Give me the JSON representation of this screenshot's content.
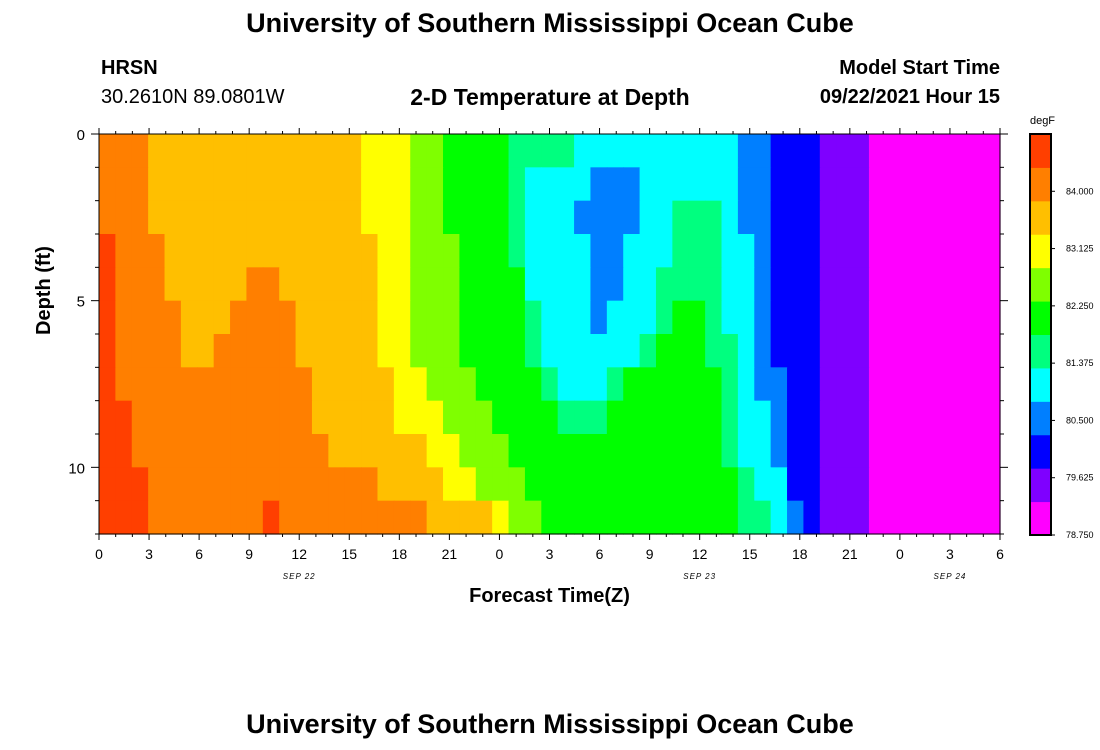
{
  "header": {
    "title_top": "University of Southern Mississippi Ocean Cube",
    "title_bottom": "University of Southern Mississippi Ocean Cube",
    "station": "HRSN",
    "coords": "30.2610N  89.0801W",
    "plot_title": "2-D Temperature at Depth",
    "model_label": "Model Start Time",
    "model_time": "09/22/2021 Hour 15"
  },
  "chart_data": {
    "type": "heatmap",
    "title": "2-D Temperature at Depth",
    "xlabel": "Forecast Time(Z)",
    "ylabel": "Depth (ft)",
    "x_hours": [
      0,
      1,
      2,
      3,
      4,
      5,
      6,
      7,
      8,
      9,
      10,
      11,
      12,
      13,
      14,
      15,
      16,
      17,
      18,
      19,
      20,
      21,
      22,
      23,
      24,
      25,
      26,
      27,
      28,
      29,
      30,
      31,
      32,
      33,
      34,
      35,
      36,
      37,
      38,
      39,
      40,
      41,
      42,
      43,
      44,
      45,
      46,
      47,
      48,
      49,
      50,
      51,
      52,
      53,
      54
    ],
    "x_tick_labels": [
      "0",
      "3",
      "6",
      "9",
      "12",
      "15",
      "18",
      "21",
      "0",
      "3",
      "6",
      "9",
      "12",
      "15",
      "18",
      "21",
      "0",
      "3",
      "6"
    ],
    "date_labels": [
      "SEP 22",
      "SEP 23",
      "SEP 24"
    ],
    "y_depth_ft": [
      0.5,
      1.5,
      2.5,
      3.5,
      4.5,
      5.5,
      6.5,
      7.5,
      8.5,
      9.5,
      10.5,
      11.5
    ],
    "ylim": [
      0,
      12
    ],
    "y_tick_labels": [
      "0",
      "5",
      "10"
    ],
    "colorbar": {
      "unit": "degF",
      "min": 78.75,
      "max": 84.875,
      "tick_labels": [
        "84.000",
        "83.125",
        "82.250",
        "81.375",
        "80.500",
        "79.625",
        "78.750"
      ],
      "colors": [
        "#ff00ff",
        "#7f00ff",
        "#0000ff",
        "#007fff",
        "#00ffff",
        "#00ff7f",
        "#00ff00",
        "#7fff00",
        "#ffff00",
        "#ffbf00",
        "#ff7f00",
        "#ff3f00"
      ]
    },
    "temperature_degF": [
      [
        84.2,
        84.0,
        83.9,
        83.8,
        83.75,
        83.7,
        83.72,
        83.75,
        83.77,
        83.78,
        83.78,
        83.76,
        83.72,
        83.65,
        83.55,
        83.45,
        83.3,
        83.1,
        82.9,
        82.7,
        82.5,
        82.3,
        82.2,
        82.1,
        82.0,
        81.8,
        81.6,
        81.45,
        81.35,
        81.25,
        81.2,
        81.15,
        81.1,
        81.05,
        81.0,
        81.0,
        81.0,
        81.0,
        80.9,
        80.7,
        80.4,
        80.2,
        80.0,
        79.8,
        79.6,
        79.5,
        79.35,
        79.2,
        79.1,
        79.0,
        78.92,
        78.86,
        78.8,
        78.78,
        78.76
      ],
      [
        84.25,
        84.05,
        83.95,
        83.82,
        83.77,
        83.72,
        83.73,
        83.76,
        83.78,
        83.8,
        83.8,
        83.78,
        83.74,
        83.67,
        83.58,
        83.48,
        83.32,
        83.12,
        82.92,
        82.7,
        82.5,
        82.3,
        82.2,
        82.1,
        82.0,
        81.7,
        81.3,
        81.05,
        80.95,
        80.85,
        80.75,
        80.7,
        80.75,
        80.85,
        81.0,
        81.1,
        81.2,
        81.2,
        81.0,
        80.7,
        80.4,
        80.2,
        80.0,
        79.8,
        79.6,
        79.5,
        79.35,
        79.2,
        79.1,
        79.0,
        78.92,
        78.86,
        78.8,
        78.78,
        78.76
      ],
      [
        84.3,
        84.1,
        84.0,
        83.85,
        83.8,
        83.75,
        83.75,
        83.78,
        83.8,
        83.82,
        83.82,
        83.8,
        83.76,
        83.7,
        83.6,
        83.5,
        83.34,
        83.14,
        82.94,
        82.72,
        82.52,
        82.32,
        82.22,
        82.12,
        82.02,
        81.6,
        81.05,
        80.95,
        80.85,
        80.75,
        80.65,
        80.65,
        80.75,
        80.95,
        81.15,
        81.35,
        81.5,
        81.4,
        81.1,
        80.75,
        80.42,
        80.2,
        80.0,
        79.8,
        79.6,
        79.5,
        79.35,
        79.2,
        79.1,
        79.0,
        78.92,
        78.86,
        78.8,
        78.78,
        78.76
      ],
      [
        84.4,
        84.15,
        84.05,
        83.9,
        83.82,
        83.78,
        83.77,
        83.8,
        83.82,
        83.84,
        83.84,
        83.82,
        83.78,
        83.72,
        83.62,
        83.52,
        83.36,
        83.16,
        82.96,
        82.74,
        82.54,
        82.34,
        82.24,
        82.14,
        82.04,
        81.8,
        81.1,
        81.0,
        80.9,
        80.8,
        80.7,
        80.7,
        80.8,
        81.0,
        81.25,
        81.45,
        81.6,
        81.5,
        81.2,
        80.8,
        80.45,
        80.22,
        80.0,
        79.8,
        79.6,
        79.5,
        79.35,
        79.2,
        79.1,
        79.0,
        78.92,
        78.86,
        78.8,
        78.78,
        78.76
      ],
      [
        84.45,
        84.2,
        84.1,
        83.95,
        83.85,
        83.8,
        83.8,
        83.82,
        83.84,
        83.86,
        83.86,
        83.84,
        83.8,
        83.74,
        83.64,
        83.54,
        83.38,
        83.18,
        82.98,
        82.76,
        82.56,
        82.36,
        82.26,
        82.16,
        82.06,
        81.9,
        81.2,
        81.05,
        80.92,
        80.82,
        80.72,
        80.72,
        80.85,
        81.1,
        81.4,
        81.7,
        81.8,
        81.6,
        81.25,
        80.85,
        80.48,
        80.24,
        80.0,
        79.8,
        79.6,
        79.5,
        79.35,
        79.2,
        79.1,
        79.0,
        78.92,
        78.86,
        78.8,
        78.78,
        78.76
      ],
      [
        84.5,
        84.25,
        84.15,
        84.0,
        83.88,
        83.82,
        83.82,
        83.84,
        83.86,
        83.88,
        83.88,
        83.86,
        83.82,
        83.76,
        83.66,
        83.56,
        83.4,
        83.2,
        83.0,
        82.78,
        82.58,
        82.38,
        82.28,
        82.18,
        82.08,
        82.0,
        81.5,
        81.1,
        80.95,
        80.85,
        80.75,
        80.8,
        80.95,
        81.3,
        81.8,
        82.0,
        82.0,
        81.7,
        81.3,
        80.9,
        80.5,
        80.26,
        80.0,
        79.8,
        79.6,
        79.5,
        79.35,
        79.2,
        79.1,
        79.0,
        78.92,
        78.86,
        78.8,
        78.78,
        78.76
      ],
      [
        84.55,
        84.3,
        84.2,
        84.05,
        83.92,
        83.85,
        83.85,
        83.86,
        83.88,
        83.9,
        83.9,
        83.88,
        83.84,
        83.78,
        83.68,
        83.58,
        83.45,
        83.25,
        83.05,
        82.82,
        82.62,
        82.42,
        82.3,
        82.2,
        82.1,
        82.05,
        81.8,
        81.2,
        81.0,
        80.9,
        80.8,
        80.9,
        81.2,
        81.8,
        82.1,
        82.2,
        82.2,
        81.8,
        81.35,
        80.95,
        80.55,
        80.28,
        80.0,
        79.8,
        79.6,
        79.5,
        79.35,
        79.2,
        79.1,
        79.0,
        78.92,
        78.86,
        78.8,
        78.78,
        78.76
      ],
      [
        84.6,
        84.35,
        84.25,
        84.1,
        83.95,
        83.9,
        83.88,
        83.88,
        83.9,
        83.92,
        83.92,
        83.9,
        83.86,
        83.8,
        83.7,
        83.6,
        83.5,
        83.35,
        83.15,
        82.9,
        82.7,
        82.5,
        82.35,
        82.25,
        82.15,
        82.1,
        82.0,
        81.6,
        81.3,
        81.25,
        81.3,
        81.6,
        82.0,
        82.2,
        82.25,
        82.3,
        82.25,
        81.9,
        81.4,
        81.0,
        80.6,
        80.3,
        80.0,
        79.8,
        79.6,
        79.5,
        79.35,
        79.2,
        79.1,
        79.0,
        78.92,
        78.86,
        78.8,
        78.78,
        78.76
      ],
      [
        84.65,
        84.4,
        84.3,
        84.15,
        84.0,
        83.95,
        83.92,
        83.92,
        83.94,
        83.96,
        83.96,
        83.94,
        83.9,
        83.84,
        83.76,
        83.68,
        83.58,
        83.45,
        83.3,
        83.1,
        82.9,
        82.7,
        82.5,
        82.35,
        82.25,
        82.2,
        82.15,
        81.9,
        81.7,
        81.65,
        81.7,
        81.9,
        82.1,
        82.25,
        82.3,
        82.3,
        82.25,
        81.95,
        81.55,
        81.2,
        80.8,
        80.4,
        80.05,
        79.85,
        79.65,
        79.55,
        79.4,
        79.25,
        79.12,
        79.02,
        78.94,
        78.88,
        78.82,
        78.79,
        78.77
      ],
      [
        84.7,
        84.45,
        84.35,
        84.2,
        84.05,
        84.0,
        83.97,
        83.96,
        83.98,
        84.0,
        84.02,
        84.0,
        83.98,
        83.92,
        83.85,
        83.78,
        83.7,
        83.6,
        83.5,
        83.35,
        83.2,
        83.0,
        82.8,
        82.55,
        82.4,
        82.3,
        82.2,
        82.05,
        81.9,
        81.85,
        81.88,
        81.95,
        82.1,
        82.25,
        82.3,
        82.28,
        82.2,
        81.95,
        81.6,
        81.3,
        81.0,
        80.6,
        80.1,
        79.9,
        79.7,
        79.55,
        79.4,
        79.25,
        79.12,
        79.02,
        78.94,
        78.88,
        78.82,
        78.79,
        78.77
      ],
      [
        84.75,
        84.55,
        84.4,
        84.25,
        84.1,
        84.05,
        84.02,
        84.0,
        84.05,
        84.15,
        84.2,
        84.18,
        84.15,
        84.1,
        84.05,
        84.0,
        83.9,
        83.8,
        83.7,
        83.6,
        83.45,
        83.3,
        83.1,
        82.8,
        82.5,
        82.4,
        82.3,
        82.25,
        82.2,
        82.18,
        82.2,
        82.25,
        82.3,
        82.32,
        82.3,
        82.25,
        82.1,
        82.0,
        81.85,
        81.6,
        81.3,
        80.8,
        80.2,
        79.95,
        79.75,
        79.55,
        79.4,
        79.25,
        79.12,
        79.02,
        78.94,
        78.88,
        78.82,
        78.79,
        78.77
      ],
      [
        84.8,
        84.6,
        84.45,
        84.3,
        84.2,
        84.1,
        84.08,
        84.1,
        84.2,
        84.3,
        84.4,
        84.35,
        84.3,
        84.25,
        84.2,
        84.15,
        84.1,
        84.0,
        83.95,
        83.9,
        83.8,
        83.7,
        83.6,
        83.4,
        83.1,
        82.7,
        82.4,
        82.3,
        82.25,
        82.25,
        82.25,
        82.25,
        82.28,
        82.3,
        82.28,
        82.25,
        82.2,
        82.1,
        82.0,
        81.8,
        81.5,
        81.1,
        80.4,
        80.0,
        79.75,
        79.55,
        79.4,
        79.25,
        79.12,
        79.02,
        78.94,
        78.88,
        78.82,
        78.79,
        78.77
      ]
    ]
  }
}
